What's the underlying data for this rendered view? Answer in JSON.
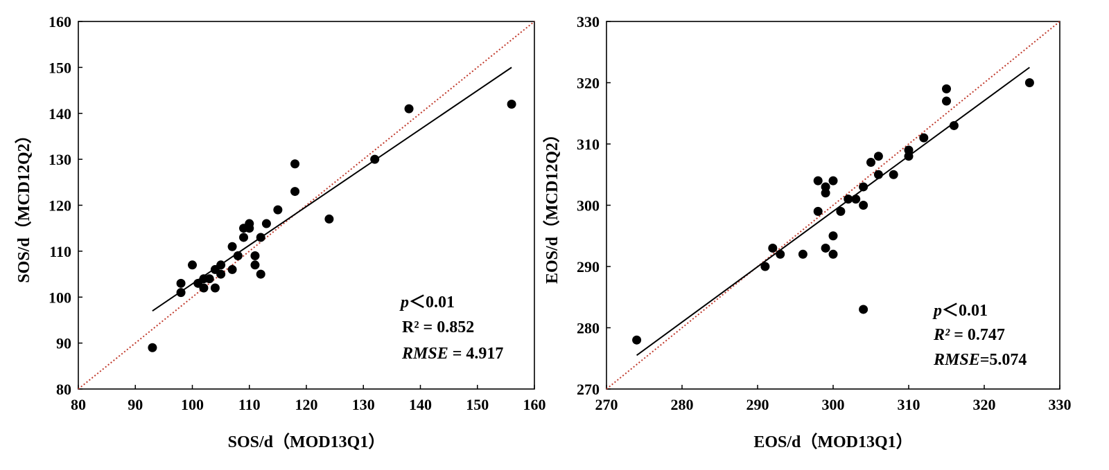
{
  "colors": {
    "points": "#000000",
    "fit_line": "#000000",
    "one_to_one": "#c0392b",
    "frame": "#000000"
  },
  "chart_data": [
    {
      "type": "scatter",
      "xlabel": "SOS/d（MOD13Q1）",
      "ylabel": "SOS/d（MCD12Q2）",
      "xlim": [
        80,
        160
      ],
      "ylim": [
        80,
        160
      ],
      "xticks": [
        80,
        90,
        100,
        110,
        120,
        130,
        140,
        150,
        160
      ],
      "yticks": [
        80,
        90,
        100,
        110,
        120,
        130,
        140,
        150,
        160
      ],
      "points": [
        [
          93,
          89
        ],
        [
          98,
          101
        ],
        [
          98,
          103
        ],
        [
          100,
          107
        ],
        [
          101,
          103
        ],
        [
          102,
          102
        ],
        [
          102,
          104
        ],
        [
          103,
          104
        ],
        [
          104,
          102
        ],
        [
          104,
          106
        ],
        [
          105,
          105
        ],
        [
          105,
          107
        ],
        [
          107,
          106
        ],
        [
          107,
          111
        ],
        [
          108,
          109
        ],
        [
          109,
          113
        ],
        [
          109,
          115
        ],
        [
          110,
          115
        ],
        [
          110,
          116
        ],
        [
          111,
          107
        ],
        [
          111,
          109
        ],
        [
          112,
          105
        ],
        [
          112,
          113
        ],
        [
          113,
          116
        ],
        [
          115,
          119
        ],
        [
          118,
          129
        ],
        [
          118,
          123
        ],
        [
          124,
          117
        ],
        [
          132,
          130
        ],
        [
          138,
          141
        ],
        [
          156,
          142
        ]
      ],
      "fit_line": [
        [
          93,
          97
        ],
        [
          156,
          150
        ]
      ],
      "one_to_one_line": [
        [
          80,
          80
        ],
        [
          160,
          160
        ]
      ],
      "stats": {
        "p_symbol": "p",
        "p_value": "＜0.01",
        "r2_label": "R² = 0.852",
        "rmse_symbol": "RMSE",
        "rmse_value": " = 4.917"
      },
      "grid": false
    },
    {
      "type": "scatter",
      "xlabel": "EOS/d（MOD13Q1）",
      "ylabel": "EOS/d（MCD12Q2）",
      "xlim": [
        270,
        330
      ],
      "ylim": [
        270,
        330
      ],
      "xticks": [
        270,
        280,
        290,
        300,
        310,
        320,
        330
      ],
      "yticks": [
        270,
        280,
        290,
        300,
        310,
        320,
        330
      ],
      "points": [
        [
          274,
          278
        ],
        [
          291,
          290
        ],
        [
          292,
          293
        ],
        [
          293,
          292
        ],
        [
          296,
          292
        ],
        [
          298,
          299
        ],
        [
          298,
          304
        ],
        [
          299,
          302
        ],
        [
          299,
          303
        ],
        [
          299,
          293
        ],
        [
          300,
          304
        ],
        [
          300,
          295
        ],
        [
          300,
          292
        ],
        [
          301,
          299
        ],
        [
          302,
          301
        ],
        [
          303,
          301
        ],
        [
          304,
          303
        ],
        [
          304,
          300
        ],
        [
          304,
          283
        ],
        [
          305,
          307
        ],
        [
          306,
          308
        ],
        [
          306,
          305
        ],
        [
          308,
          305
        ],
        [
          310,
          309
        ],
        [
          310,
          308
        ],
        [
          312,
          311
        ],
        [
          315,
          319
        ],
        [
          315,
          317
        ],
        [
          316,
          313
        ],
        [
          326,
          320
        ]
      ],
      "fit_line": [
        [
          274,
          275.5
        ],
        [
          326,
          322.5
        ]
      ],
      "one_to_one_line": [
        [
          270,
          270
        ],
        [
          330,
          330
        ]
      ],
      "stats": {
        "p_symbol": "p",
        "p_value": "＜0.01",
        "r2_symbol": "R²",
        "r2_value": " = 0.747",
        "rmse_symbol": "RMSE",
        "rmse_value": "=5.074"
      },
      "grid": false
    }
  ]
}
